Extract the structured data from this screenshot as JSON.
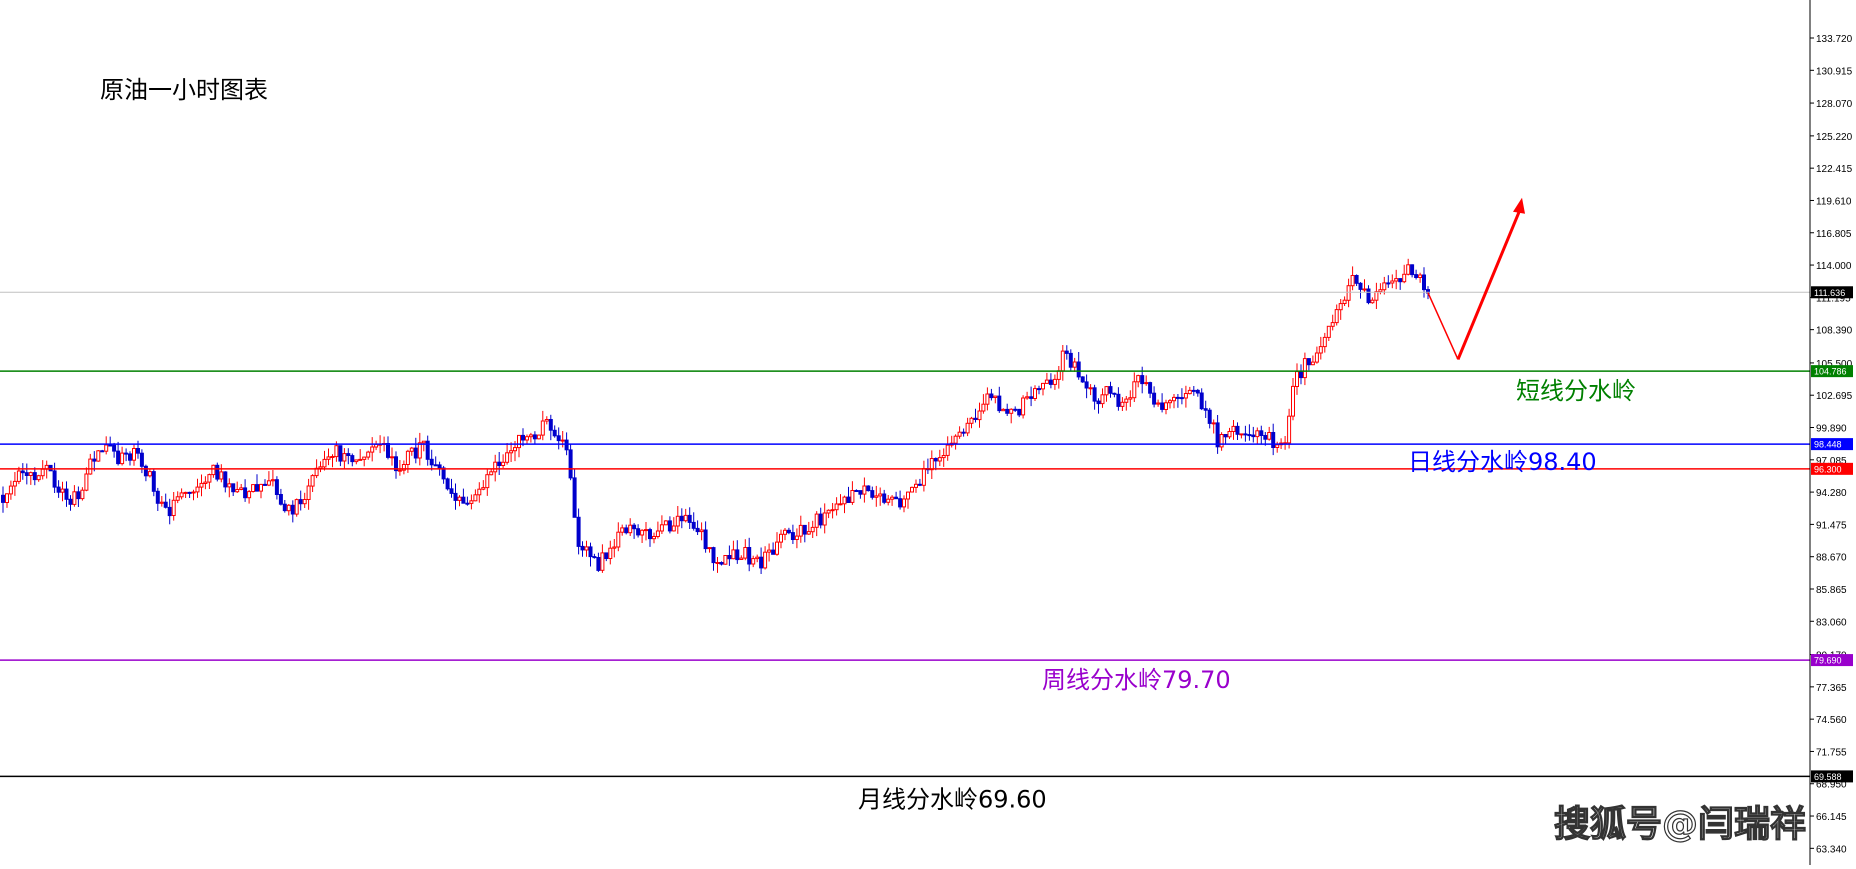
{
  "chart_data": {
    "type": "candlestick",
    "title": "原油一小时图表",
    "watermark": "搜狐号@闫瑞祥",
    "colors": {
      "up": "#ff0000",
      "down": "#0000cc",
      "background": "#ffffff",
      "text": "#000000",
      "current_price_line": "#c0c0c0"
    },
    "y_axis": {
      "position": "right",
      "ylim": [
        62.5,
        136.5
      ],
      "ticks": [
        "133.720",
        "130.915",
        "128.070",
        "125.220",
        "122.415",
        "119.610",
        "116.805",
        "114.000",
        "111.195",
        "108.390",
        "105.500",
        "102.695",
        "99.890",
        "97.085",
        "94.280",
        "91.475",
        "88.670",
        "85.865",
        "83.060",
        "80.170",
        "77.365",
        "74.560",
        "71.755",
        "68.950",
        "66.145",
        "63.340"
      ]
    },
    "current_price": 111.636,
    "levels": [
      {
        "name": "短线分水岭",
        "label": "短线分水岭",
        "value": 104.786,
        "tag": "104.786",
        "color": "#008000"
      },
      {
        "name": "日线分水岭",
        "label": "日线分水岭98.40",
        "value": 98.448,
        "tag": "98.448",
        "color": "#0000ff"
      },
      {
        "name": "",
        "label": "",
        "value": 96.3,
        "tag": "96.300",
        "color": "#ff0000"
      },
      {
        "name": "周线分水岭",
        "label": "周线分水岭79.70",
        "value": 79.69,
        "tag": "79.690",
        "color": "#9900cc"
      },
      {
        "name": "月线分水岭",
        "label": "月线分水岭69.60",
        "value": 69.588,
        "tag": "69.588",
        "color": "#000000"
      }
    ],
    "close_path": [
      94,
      95,
      96,
      95.5,
      96,
      94.5,
      93.5,
      94.5,
      97,
      98.5,
      97.5,
      97,
      98,
      96,
      94,
      92.5,
      93.5,
      94.5,
      95.5,
      96.5,
      95.5,
      94.5,
      94,
      95,
      95.2,
      94,
      92.5,
      93.5,
      95,
      97,
      98,
      97,
      96.5,
      97.5,
      98.5,
      97.2,
      96.5,
      97.5,
      98.2,
      96.5,
      95,
      94,
      93.5,
      94.3,
      95.5,
      97,
      98.3,
      98.7,
      99.3,
      100.2,
      99,
      98.2,
      90,
      89,
      88,
      89.5,
      91,
      91.3,
      90.5,
      90,
      91.2,
      92,
      92.3,
      91,
      89,
      88.3,
      88.8,
      89.2,
      88,
      88.5,
      89.5,
      90.5,
      91,
      91.5,
      92,
      92.5,
      93,
      94,
      94.8,
      94.2,
      93.5,
      93.2,
      94,
      95.2,
      96.5,
      97.5,
      98.5,
      99.5,
      101,
      102.5,
      101.8,
      101,
      101.5,
      102.3,
      103,
      104,
      106,
      105,
      103,
      102.5,
      102.8,
      102.2,
      103,
      104.2,
      102.3,
      101.8,
      102.3,
      102.5,
      102.8,
      101.5,
      98.5,
      99.5,
      100,
      99.5,
      99,
      98.7,
      98.2,
      104.2,
      105.5,
      106.5,
      108.5,
      110.5,
      113,
      112,
      111,
      111.8,
      112,
      114,
      112.8,
      111.6
    ],
    "projection": {
      "color": "#ff0000",
      "points": [
        [
          111.6,
          0
        ],
        [
          105.8,
          1
        ],
        [
          119.5,
          2
        ]
      ]
    }
  }
}
